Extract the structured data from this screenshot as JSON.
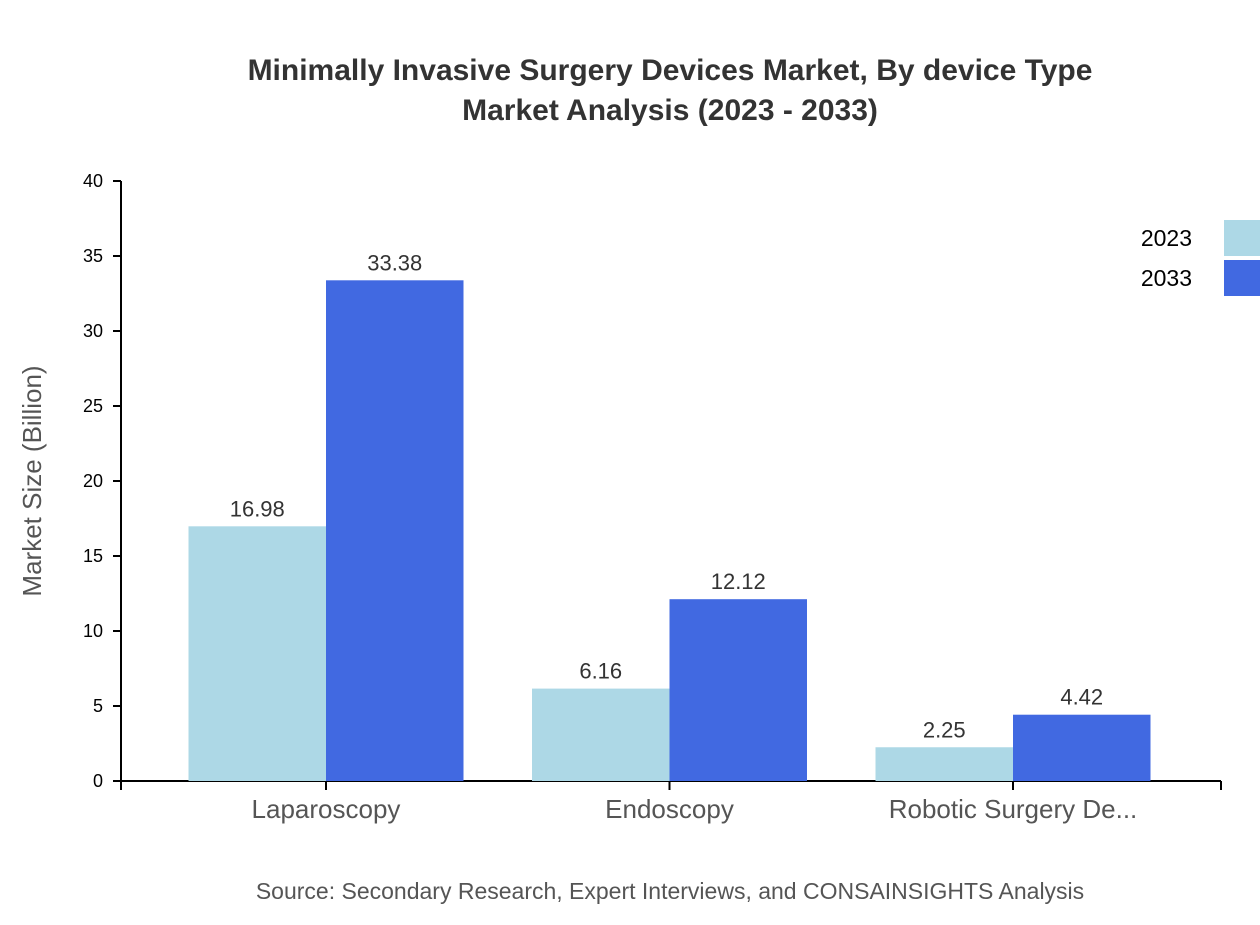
{
  "chart_data": {
    "type": "bar",
    "title_line1": "Minimally Invasive Surgery Devices Market, By device Type",
    "title_line2": "Market Analysis (2023 - 2033)",
    "xlabel": "",
    "ylabel": "Market Size (Billion)",
    "ylim": [
      0,
      40
    ],
    "yticks": [
      "0",
      "5",
      "10",
      "15",
      "20",
      "25",
      "30",
      "35",
      "40"
    ],
    "categories": [
      "Laparoscopy",
      "Endoscopy",
      "Robotic Surgery De..."
    ],
    "series": [
      {
        "name": "2023",
        "color": "#add8e6",
        "values": [
          16.98,
          6.16,
          2.25
        ],
        "labels": [
          "16.98",
          "6.16",
          "2.25"
        ]
      },
      {
        "name": "2033",
        "color": "#4169e1",
        "values": [
          33.38,
          12.12,
          4.42
        ],
        "labels": [
          "33.38",
          "12.12",
          "4.42"
        ]
      }
    ],
    "legend_position": "top-right",
    "grid": false,
    "source": "Source: Secondary Research, Expert Interviews, and CONSAINSIGHTS Analysis"
  }
}
